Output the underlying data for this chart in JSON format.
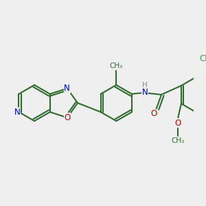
{
  "background_color": "#efefef",
  "bond_color": "#2d6b2d",
  "bond_width": 1.5,
  "atom_colors": {
    "C": "#2d6b2d",
    "N": "#0000cc",
    "O": "#cc0000",
    "Cl": "#3a9a3a",
    "H": "#888888"
  },
  "font_size": 8.5
}
